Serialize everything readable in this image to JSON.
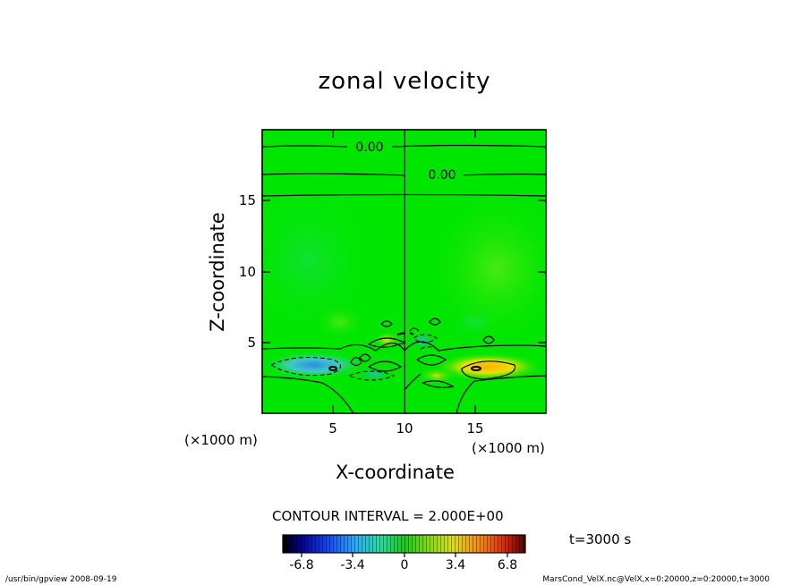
{
  "chart_data": {
    "type": "heatmap",
    "title": "zonal velocity",
    "xlabel": "X-coordinate",
    "ylabel": "Z-coordinate",
    "x_unit": "(×1000 m)",
    "y_unit": "(×1000 m)",
    "xlim": [
      0,
      20
    ],
    "ylim": [
      0,
      20
    ],
    "x_ticks": [
      "5",
      "10",
      "15"
    ],
    "y_ticks": [
      "5",
      "10",
      "15"
    ],
    "contour_labels": [
      "0.00",
      "0.00"
    ],
    "contour_interval": "CONTOUR INTERVAL = 2.000E+00",
    "colorbar": {
      "range": [
        -8.5,
        8.5
      ],
      "ticks": [
        "-6.8",
        "-3.4",
        "0",
        "3.4",
        "6.8"
      ]
    },
    "time_label": "t=3000 s",
    "grid": false
  },
  "footer": {
    "left": "/usr/bin/gpview   2008-09-19",
    "right": "MarsCond_VelX.nc@VelX,x=0:20000,z=0:20000,t=3000"
  },
  "colors": {
    "field_background": "#00e600",
    "contour": "#000000",
    "negative": "#33aaee",
    "positive": "#ffd21e"
  }
}
